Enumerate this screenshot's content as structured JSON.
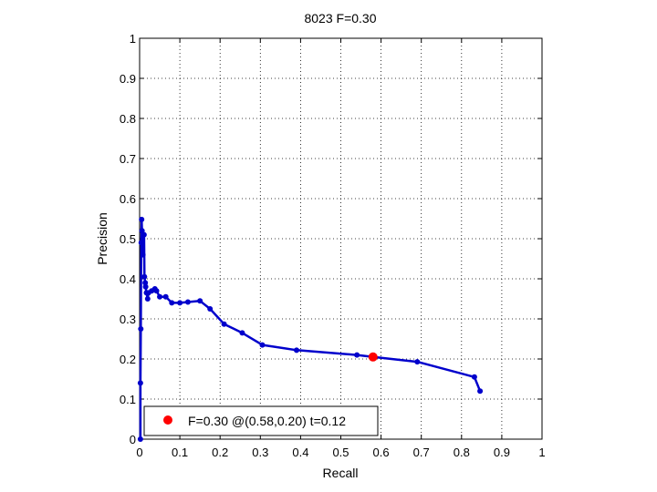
{
  "chart_data": {
    "type": "line",
    "title": "8023 F=0.30",
    "xlabel": "Recall",
    "ylabel": "Precision",
    "xlim": [
      0,
      1
    ],
    "ylim": [
      0,
      1
    ],
    "xticks": [
      "0",
      "0.1",
      "0.2",
      "0.3",
      "0.4",
      "0.5",
      "0.6",
      "0.7",
      "0.8",
      "0.9",
      "1"
    ],
    "yticks": [
      "0",
      "0.1",
      "0.2",
      "0.3",
      "0.4",
      "0.5",
      "0.6",
      "0.7",
      "0.8",
      "0.9",
      "1"
    ],
    "grid": true,
    "legend_position": "bottom-left",
    "series": [
      {
        "color": "#0000cc",
        "x": [
          0.002,
          0.002,
          0.003,
          0.004,
          0.005,
          0.006,
          0.008,
          0.011,
          0.012,
          0.014,
          0.015,
          0.017,
          0.02,
          0.022,
          0.03,
          0.038,
          0.042,
          0.05,
          0.065,
          0.08,
          0.1,
          0.12,
          0.15,
          0.175,
          0.21,
          0.255,
          0.305,
          0.39,
          0.54,
          0.58,
          0.69,
          0.832,
          0.846
        ],
        "y": [
          0.0,
          0.14,
          0.275,
          0.49,
          0.548,
          0.52,
          0.46,
          0.51,
          0.405,
          0.39,
          0.38,
          0.365,
          0.35,
          0.365,
          0.37,
          0.375,
          0.37,
          0.355,
          0.355,
          0.34,
          0.34,
          0.342,
          0.345,
          0.325,
          0.287,
          0.265,
          0.235,
          0.222,
          0.21,
          0.205,
          0.193,
          0.155,
          0.12
        ]
      }
    ],
    "highlight": {
      "x": 0.58,
      "y": 0.205,
      "color": "#ff0000"
    },
    "legend": {
      "label": "F=0.30 @(0.58,0.20) t=0.12"
    }
  }
}
